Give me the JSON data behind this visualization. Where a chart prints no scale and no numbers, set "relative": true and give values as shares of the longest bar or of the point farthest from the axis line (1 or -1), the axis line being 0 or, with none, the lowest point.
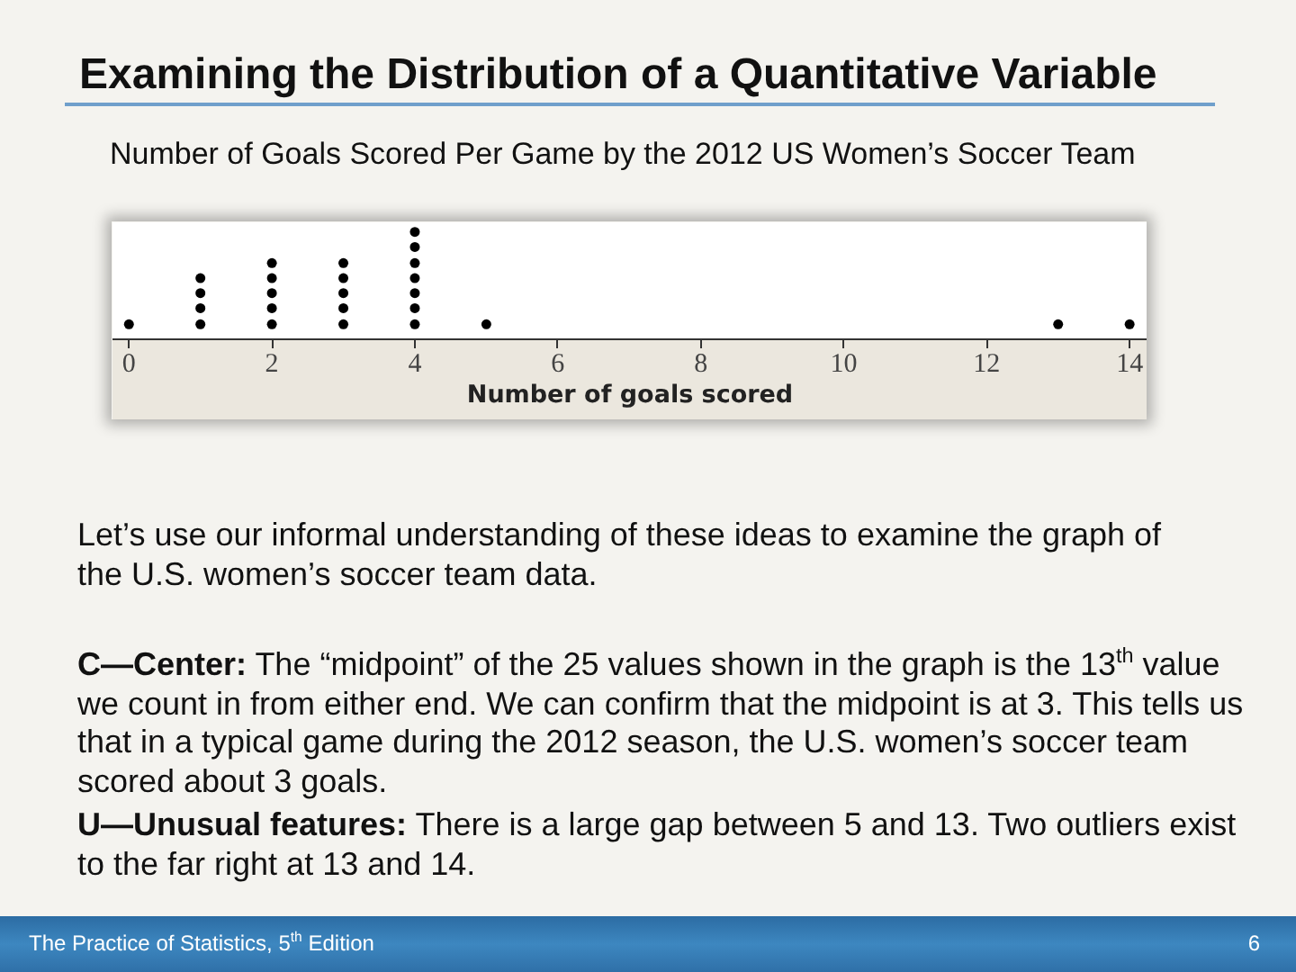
{
  "chart_data": {
    "type": "scatter",
    "title": "Examining the Distribution of a Quantitative Variable",
    "subtitle": "Number of Goals Scored Per Game by the 2012 US Women’s Soccer Team",
    "xlabel": "Number of goals scored",
    "x": [
      0,
      1,
      1,
      1,
      1,
      2,
      2,
      2,
      2,
      2,
      3,
      3,
      3,
      3,
      3,
      4,
      4,
      4,
      4,
      4,
      4,
      4,
      5,
      13,
      14
    ],
    "series": [
      {
        "color": "#000000",
        "values": [
          0.14,
          0.14,
          0.29,
          0.43,
          0.57,
          0.14,
          0.29,
          0.43,
          0.57,
          0.71,
          0.14,
          0.29,
          0.43,
          0.57,
          0.71,
          0.14,
          0.29,
          0.43,
          0.57,
          0.71,
          0.86,
          1,
          0.14,
          0.14,
          0.14
        ]
      }
    ],
    "relative": true,
    "xlim": [
      -0.23,
      14.25
    ],
    "xticks": [
      0,
      2,
      4,
      6,
      8,
      10,
      12,
      14
    ],
    "tick_labels": "x",
    "marker": "circle",
    "annotations": [
      "Let’s use our informal understanding of these ideas to examine the graph of the U.S. women’s soccer team data.",
      "C—Center: The “midpoint” of the 25 values shown in the graph is the 13$^{th}$ value we count in from either end. We can confirm that the midpoint is at 3. This tells us that in a typical game during the 2012 season, the U.S. women’s soccer team scored about 3 goals.",
      "U—Unusual features: There is a large gap between 5 and 13. Two outliers exist to the far right at 13 and 14.",
      "The Practice of Statistics, 5$^{th}$ Edition",
      "6"
    ]
  }
}
